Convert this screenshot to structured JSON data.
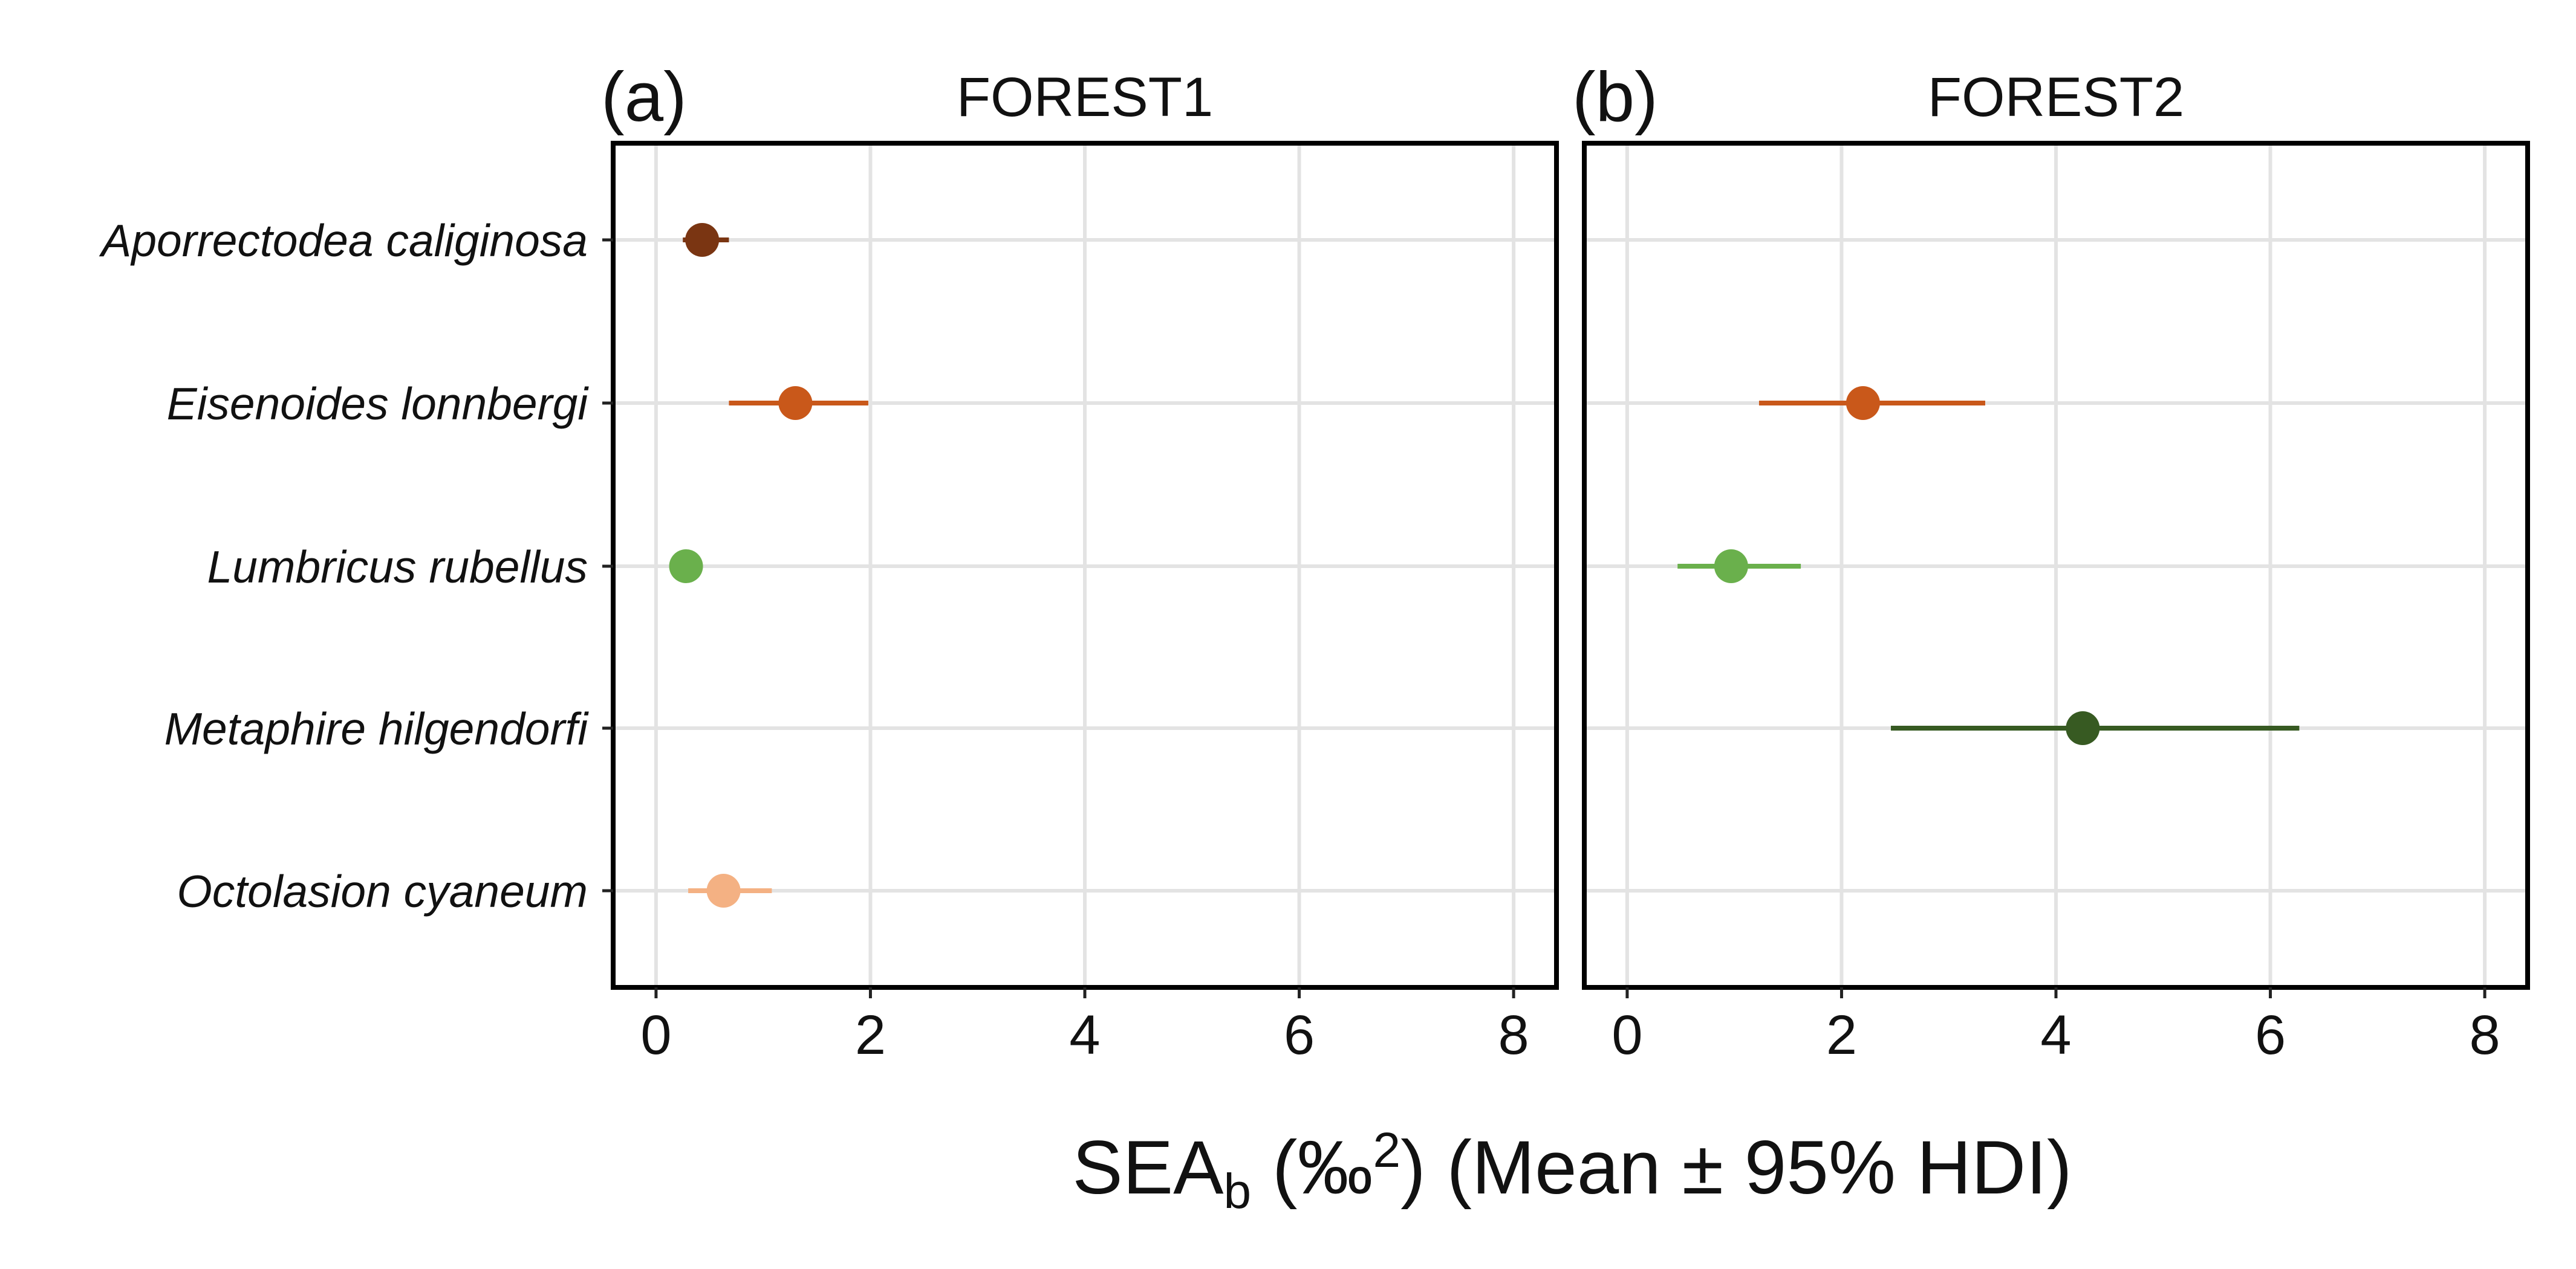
{
  "chart_data": {
    "type": "scatter",
    "xlabel": {
      "main": "SEA",
      "sub": "b",
      "unit_open": " (‰",
      "sup": "2",
      "rest": ") (Mean ± 95% HDI)"
    },
    "xlim": [
      -0.4,
      8.4
    ],
    "xticks": [
      "0",
      "2",
      "4",
      "6",
      "8"
    ],
    "categories": [
      "Aporrectodea caliginosa",
      "Eisenoides lonnbergi",
      "Lumbricus rubellus",
      "Metaphire hilgendorfi",
      "Octolasion cyaneum"
    ],
    "colors": {
      "Aporrectodea caliginosa": "#7a3512",
      "Eisenoides lonnbergi": "#c9581a",
      "Lumbricus rubellus": "#6ab04c",
      "Metaphire hilgendorfi": "#375a22",
      "Octolasion cyaneum": "#f4b183"
    },
    "panels": [
      {
        "tag": "(a)",
        "title": "FOREST1",
        "points": [
          {
            "species": "Aporrectodea caliginosa",
            "mean": 0.43,
            "lo": 0.25,
            "hi": 0.68
          },
          {
            "species": "Eisenoides lonnbergi",
            "mean": 1.3,
            "lo": 0.68,
            "hi": 1.98
          },
          {
            "species": "Lumbricus rubellus",
            "mean": 0.28,
            "lo": 0.2,
            "hi": 0.36
          },
          {
            "species": "Octolasion cyaneum",
            "mean": 0.63,
            "lo": 0.3,
            "hi": 1.08
          }
        ]
      },
      {
        "tag": "(b)",
        "title": "FOREST2",
        "points": [
          {
            "species": "Eisenoides lonnbergi",
            "mean": 2.2,
            "lo": 1.23,
            "hi": 3.34
          },
          {
            "species": "Lumbricus rubellus",
            "mean": 0.97,
            "lo": 0.47,
            "hi": 1.62
          },
          {
            "species": "Metaphire hilgendorfi",
            "mean": 4.25,
            "lo": 2.46,
            "hi": 6.27
          }
        ]
      }
    ]
  }
}
